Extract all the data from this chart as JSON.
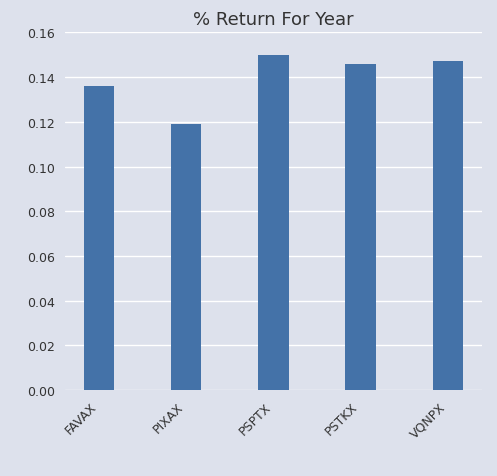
{
  "title": "% Return For Year",
  "categories": [
    "FAVAX",
    "PIXAX",
    "PSPTX",
    "PSTKX",
    "VQNPX"
  ],
  "values": [
    0.136,
    0.119,
    0.15,
    0.146,
    0.147
  ],
  "bar_color": "#4472a8",
  "background_color": "#dde1ec",
  "grid_color": "#ffffff",
  "ylim": [
    0,
    0.16
  ],
  "yticks": [
    0.0,
    0.02,
    0.04,
    0.06,
    0.08,
    0.1,
    0.12,
    0.14,
    0.16
  ],
  "title_fontsize": 13,
  "tick_fontsize": 9,
  "bar_width": 0.35,
  "figsize": [
    4.97,
    4.77
  ],
  "dpi": 100
}
